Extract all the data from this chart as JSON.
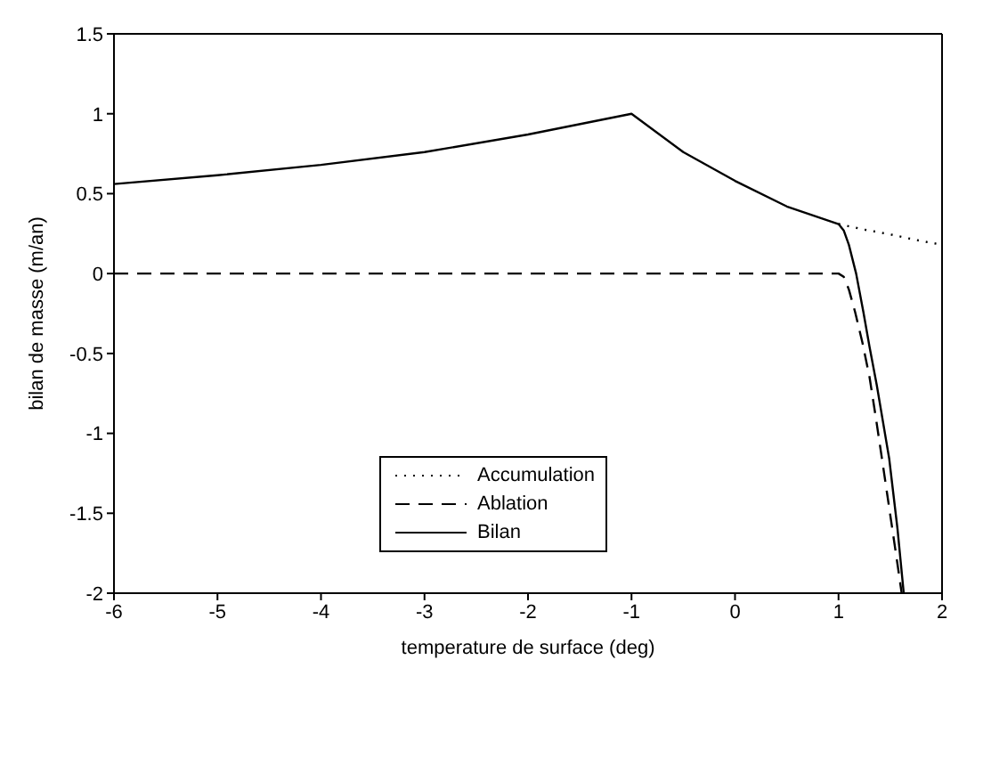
{
  "chart_data": {
    "type": "line",
    "xlabel": "temperature de surface (deg)",
    "ylabel": "bilan de masse (m/an)",
    "xlim": [
      -6,
      2
    ],
    "xticks": [
      -6,
      -5,
      -4,
      -3,
      -2,
      -1,
      0,
      1,
      2
    ],
    "ylim": [
      -2,
      1.5
    ],
    "yticks": [
      -2,
      -1.5,
      -1,
      -0.5,
      0,
      0.5,
      1,
      1.5
    ],
    "grid": false,
    "legend": "center",
    "series": [
      {
        "name": "Accumulation",
        "color": "#000000",
        "line_style": "dotted",
        "x": [
          1,
          1.25,
          1.5,
          1.75,
          2
        ],
        "values": [
          0.31,
          0.275,
          0.245,
          0.21,
          0.18
        ]
      },
      {
        "name": "Ablation",
        "color": "#000000",
        "line_style": "dashed",
        "x": [
          -6,
          -4,
          -2,
          0,
          1,
          1.05,
          1.1,
          1.16,
          1.23,
          1.3,
          1.36,
          1.42,
          1.47,
          1.52,
          1.57,
          1.61
        ],
        "values": [
          0,
          0,
          0,
          0,
          0,
          -0.02,
          -0.1,
          -0.24,
          -0.43,
          -0.65,
          -0.9,
          -1.16,
          -1.38,
          -1.6,
          -1.82,
          -2
        ]
      },
      {
        "name": "Bilan",
        "color": "#000000",
        "line_style": "solid",
        "x": [
          -6,
          -5,
          -4,
          -3,
          -2,
          -1,
          -0.5,
          0,
          0.5,
          1,
          1.05,
          1.1,
          1.17,
          1.24,
          1.3,
          1.37,
          1.43,
          1.49,
          1.53,
          1.57,
          1.6,
          1.63
        ],
        "values": [
          0.56,
          0.615,
          0.68,
          0.76,
          0.87,
          1.0,
          0.76,
          0.58,
          0.42,
          0.31,
          0.27,
          0.18,
          0.0,
          -0.24,
          -0.46,
          -0.7,
          -0.93,
          -1.16,
          -1.38,
          -1.6,
          -1.8,
          -2
        ]
      }
    ]
  }
}
